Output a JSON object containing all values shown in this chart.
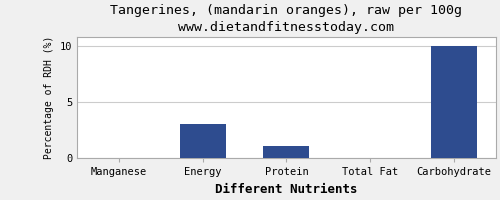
{
  "title": "Tangerines, (mandarin oranges), raw per 100g",
  "subtitle": "www.dietandfitnesstoday.com",
  "categories": [
    "Manganese",
    "Energy",
    "Protein",
    "Total Fat",
    "Carbohydrate"
  ],
  "values": [
    0.0,
    3.0,
    1.1,
    0.05,
    10.0
  ],
  "bar_color": "#2e4c8f",
  "xlabel": "Different Nutrients",
  "ylabel": "Percentage of RDH (%)",
  "ylim": [
    0,
    10.8
  ],
  "yticks": [
    0,
    5,
    10
  ],
  "background_color": "#f0f0f0",
  "plot_bg_color": "#ffffff",
  "title_fontsize": 9.5,
  "subtitle_fontsize": 8.5,
  "xlabel_fontsize": 9,
  "ylabel_fontsize": 7,
  "tick_fontsize": 7.5,
  "border_color": "#aaaaaa"
}
